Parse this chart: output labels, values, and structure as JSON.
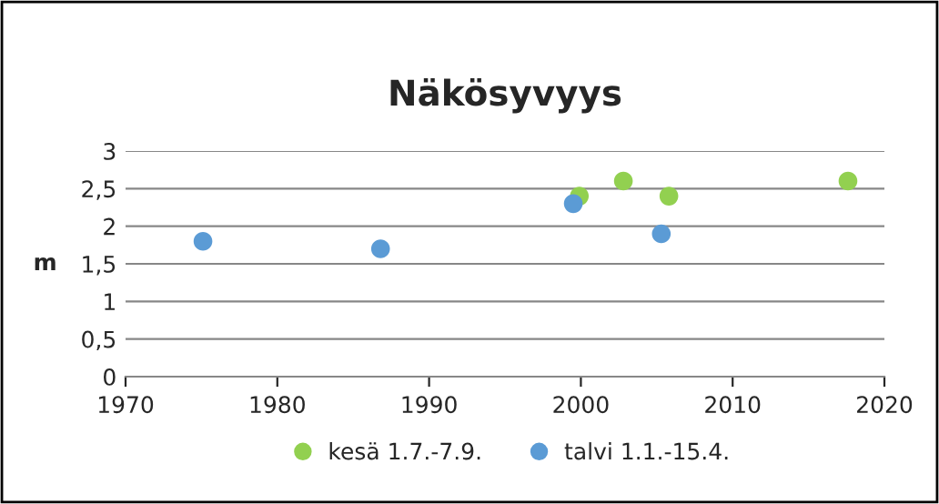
{
  "chart_data": {
    "type": "scatter",
    "title": "Näkösyvyys",
    "ylabel": "m",
    "xlim": [
      1970,
      2020
    ],
    "xticks": [
      1970,
      1980,
      1990,
      2000,
      2010,
      2020
    ],
    "ylim": [
      0,
      3
    ],
    "yticks": [
      0,
      {
        "value": 0.5,
        "label": "0,5"
      },
      1,
      {
        "value": 1.5,
        "label": "1,5"
      },
      2,
      {
        "value": 2.5,
        "label": "2,5"
      },
      3
    ],
    "grid": "y",
    "legend": "bottom",
    "marker": "circle",
    "series": [
      {
        "name": "kesä 1.7.-7.9.",
        "color": "#92d050",
        "x": [
          1999.9,
          2002.8,
          2005.8,
          2017.6
        ],
        "values": [
          2.4,
          2.6,
          2.4,
          2.6
        ]
      },
      {
        "name": "talvi 1.1.-15.4.",
        "color": "#5b9bd5",
        "x": [
          1975.1,
          1986.8,
          1999.5,
          2005.3
        ],
        "values": [
          1.8,
          1.7,
          2.3,
          1.9
        ]
      }
    ]
  }
}
